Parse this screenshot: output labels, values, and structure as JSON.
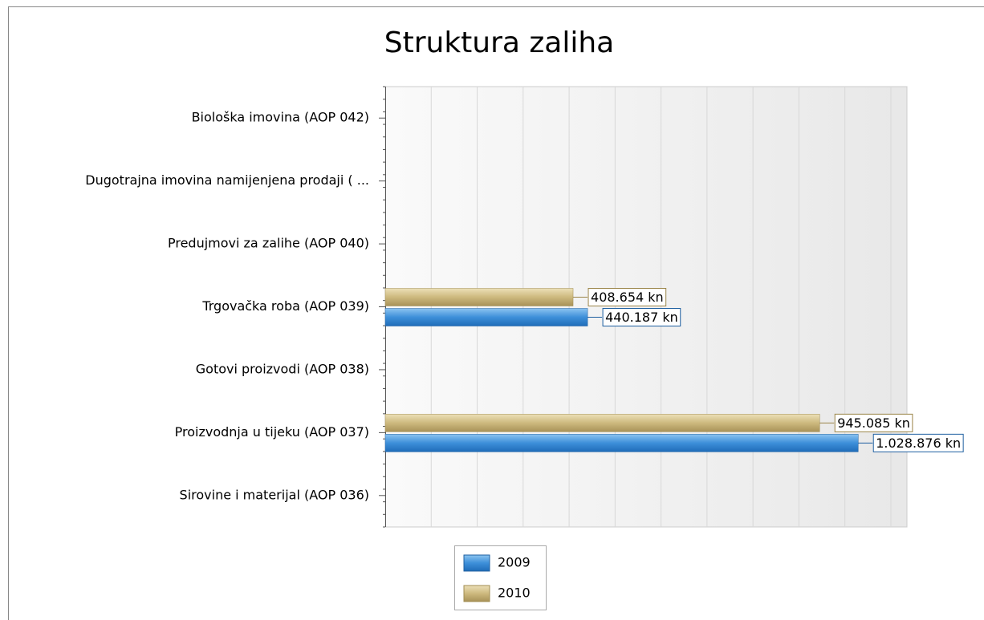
{
  "chart_data": {
    "type": "barh",
    "title": "Struktura zaliha",
    "categories": [
      "Biološka imovina (AOP 042)",
      "Dugotrajna imovina namijenjena prodaji ( ...",
      "Predujmovi za zalihe (AOP 040)",
      "Trgovačka roba (AOP 039)",
      "Gotovi proizvodi (AOP 038)",
      "Proizvodnja u tijeku (AOP 037)",
      "Sirovine i materijal (AOP 036)"
    ],
    "series": [
      {
        "name": "2009",
        "color": "#3d8fd9",
        "values": [
          null,
          null,
          null,
          440187,
          null,
          1028876,
          null
        ],
        "value_labels": [
          null,
          null,
          null,
          "440.187 kn",
          null,
          "1.028.876 kn",
          null
        ]
      },
      {
        "name": "2010",
        "color": "#cdb97e",
        "values": [
          null,
          null,
          null,
          408654,
          null,
          945085,
          null
        ],
        "value_labels": [
          null,
          null,
          null,
          "408.654 kn",
          null,
          "945.085 kn",
          null
        ]
      }
    ],
    "xlim": [
      0,
      1135000
    ],
    "xticks": [
      0,
      100000,
      200000,
      300000,
      400000,
      500000,
      600000,
      700000,
      800000,
      900000,
      1000000,
      1100000
    ],
    "grid": true
  }
}
